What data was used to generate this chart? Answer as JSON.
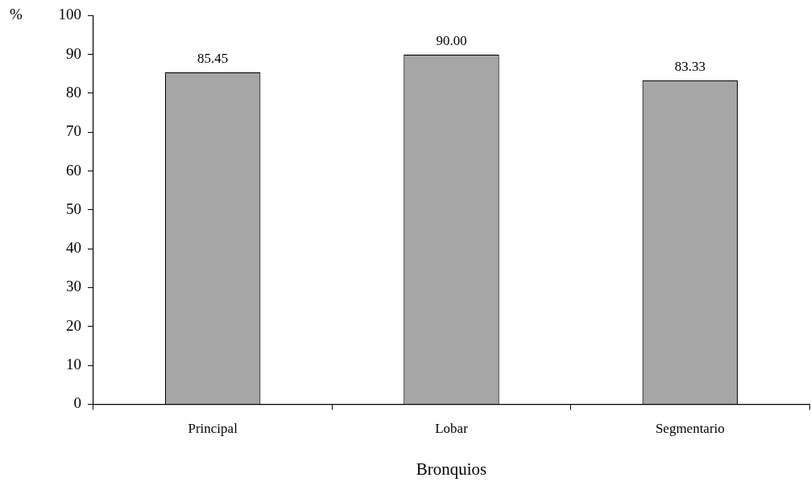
{
  "chart_data": {
    "type": "bar",
    "xlabel": "Bronquios",
    "ylabel": "%",
    "categories": [
      "Principal",
      "Lobar",
      "Segmentario"
    ],
    "values": [
      85.45,
      90.0,
      83.33
    ],
    "value_labels": [
      "85.45",
      "90.00",
      "83.33"
    ],
    "color": "#a6a6a6",
    "ylim": [
      0,
      100
    ],
    "yticks": [
      0,
      10,
      20,
      30,
      40,
      50,
      60,
      70,
      80,
      90,
      100
    ],
    "grid": false,
    "legend": false
  }
}
